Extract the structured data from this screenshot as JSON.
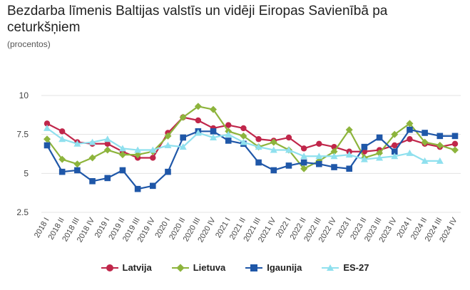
{
  "title": "Bezdarba līmenis Baltijas valstīs un vidēji Eiropas Savienībā pa ceturkšņiem",
  "subtitle": "(procentos)",
  "chart_data": {
    "type": "line",
    "x": [
      "2018 I",
      "2018 II",
      "2018 III",
      "2018 IV",
      "2019 I",
      "2019 II",
      "2019 III",
      "2019 IV",
      "2020 I",
      "2020 II",
      "2020 III",
      "2020 IV",
      "2021 I",
      "2021 II",
      "2021 III",
      "2021 IV",
      "2022 I",
      "2022 II",
      "2022 III",
      "2022 IV",
      "2023 I",
      "2023 II",
      "2023 III",
      "2023 IV",
      "2024 I",
      "2024 II",
      "2024 III",
      "2024 IV"
    ],
    "ylim": [
      2.5,
      10
    ],
    "yticks": [
      2.5,
      5,
      7.5,
      10
    ],
    "ytick_labels": [
      "2.5",
      "5",
      "7.5",
      "10"
    ],
    "grid": true,
    "legend_position": "bottom",
    "series": [
      {
        "name": "Latvija",
        "color": "#c0264a",
        "marker": "circle",
        "values": [
          8.2,
          7.7,
          7.0,
          6.9,
          6.9,
          6.4,
          6.0,
          6.0,
          7.6,
          8.6,
          8.4,
          7.9,
          8.1,
          7.9,
          7.2,
          7.1,
          7.3,
          6.6,
          6.9,
          6.7,
          6.4,
          6.4,
          6.5,
          6.8,
          7.2,
          6.9,
          6.7,
          6.9
        ]
      },
      {
        "name": "Lietuva",
        "color": "#8db43c",
        "marker": "diamond",
        "values": [
          7.2,
          5.9,
          5.6,
          6.0,
          6.5,
          6.2,
          6.2,
          6.4,
          7.4,
          8.6,
          9.3,
          9.1,
          7.7,
          7.4,
          6.7,
          7.0,
          6.5,
          5.3,
          5.8,
          6.4,
          7.8,
          6.0,
          6.3,
          7.5,
          8.2,
          7.0,
          6.8,
          6.5
        ]
      },
      {
        "name": "Igaunija",
        "color": "#1f57a8",
        "marker": "square",
        "values": [
          6.8,
          5.1,
          5.2,
          4.5,
          4.7,
          5.2,
          4.0,
          4.2,
          5.1,
          7.3,
          7.7,
          7.7,
          7.1,
          6.9,
          5.7,
          5.2,
          5.5,
          5.7,
          5.6,
          5.4,
          5.3,
          6.7,
          7.3,
          6.4,
          7.8,
          7.6,
          7.4,
          7.4
        ]
      },
      {
        "name": "ES-27",
        "color": "#8fe0ee",
        "marker": "triangle",
        "values": [
          7.9,
          7.2,
          6.9,
          7.0,
          7.2,
          6.6,
          6.5,
          6.5,
          6.8,
          6.7,
          7.6,
          7.3,
          7.5,
          7.0,
          6.7,
          6.5,
          6.5,
          6.1,
          6.1,
          6.1,
          6.2,
          5.9,
          6.0,
          6.1,
          6.3,
          5.8,
          5.8,
          null
        ]
      }
    ]
  }
}
